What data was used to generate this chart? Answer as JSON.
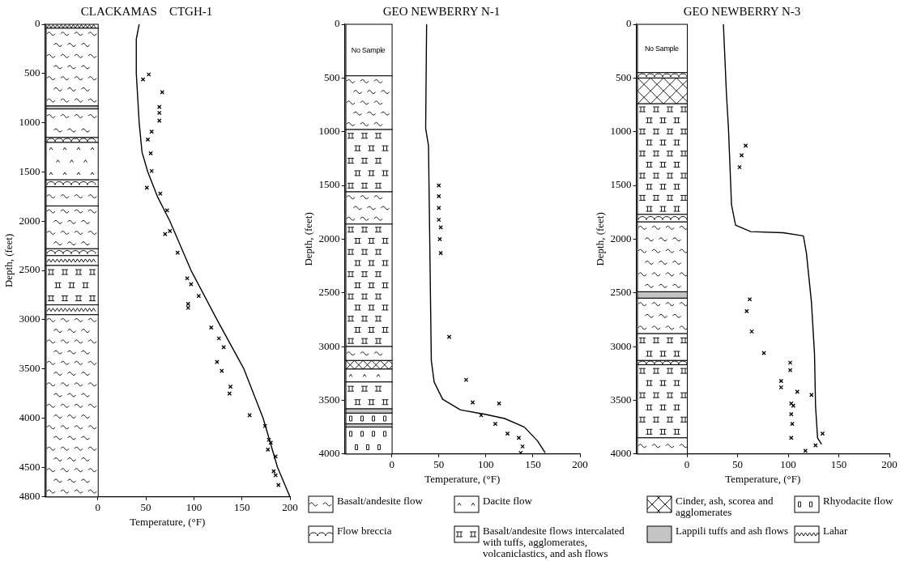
{
  "chart_data": [
    {
      "type": "scatter",
      "title": "CLACKAMAS    CTGH-1",
      "xlabel": "Temperature, (°F)",
      "ylabel": "Depth, (feet)",
      "xlim": [
        -55,
        200
      ],
      "xticks": [
        0,
        50,
        100,
        150,
        200
      ],
      "ylim": [
        4800,
        0
      ],
      "yticks": [
        0,
        500,
        1000,
        1500,
        2000,
        2500,
        3000,
        3500,
        4000,
        4500,
        4800
      ],
      "series": [
        {
          "type": "line",
          "color": "#000000",
          "marker": "none",
          "line_style": "solid",
          "x": [
            43,
            40,
            40,
            43,
            46,
            52,
            62,
            75,
            97,
            124,
            152,
            172,
            187,
            200
          ],
          "values": [
            0,
            150,
            500,
            1000,
            1300,
            1500,
            1750,
            2000,
            2500,
            3000,
            3500,
            4000,
            4500,
            4800
          ]
        },
        {
          "type": "scatter",
          "color": "#000000",
          "marker": "cross",
          "x": [
            53,
            47,
            67,
            64,
            64,
            64,
            56,
            52,
            55,
            56,
            51,
            65,
            72,
            75,
            70,
            83,
            93,
            97,
            105,
            94,
            94,
            118,
            126,
            131,
            124,
            129,
            138,
            137,
            158,
            174,
            178,
            180,
            177,
            185,
            183,
            185,
            188
          ],
          "values": [
            510,
            560,
            690,
            840,
            900,
            980,
            1090,
            1170,
            1310,
            1490,
            1660,
            1720,
            1890,
            2100,
            2130,
            2320,
            2580,
            2640,
            2760,
            2840,
            2880,
            3080,
            3190,
            3280,
            3430,
            3520,
            3680,
            3750,
            3970,
            4080,
            4220,
            4250,
            4320,
            4390,
            4540,
            4580,
            4680
          ]
        }
      ]
    },
    {
      "type": "scatter",
      "title": "GEO NEWBERRY N-1",
      "xlabel": "Temperature, (°F)",
      "ylabel": "Depth, (feet)",
      "xlim": [
        -50,
        200
      ],
      "xticks": [
        0,
        50,
        100,
        150,
        200
      ],
      "ylim": [
        4000,
        0
      ],
      "yticks": [
        0,
        500,
        1000,
        1500,
        2000,
        2500,
        3000,
        3500,
        4000
      ],
      "annotations": [
        "No Sample",
        "Basalt/andesite flow",
        "Dacite flow",
        "Cinder, ash, scorea and agglomerates",
        "Rhyodacite flow",
        "Flow breccia",
        "Basalt/andesite flows intercalated with tuffs, agglomerates, volcaniclastics, and ash flows",
        "Lappili tuffs and ash flows",
        "Lahar"
      ],
      "series": [
        {
          "type": "line",
          "color": "#000000",
          "marker": "none",
          "line_style": "solid",
          "x": [
            37,
            36,
            39,
            42,
            45,
            54,
            73,
            99,
            120,
            141,
            155,
            163
          ],
          "values": [
            0,
            970,
            1130,
            3130,
            3330,
            3490,
            3590,
            3630,
            3670,
            3750,
            3880,
            3990
          ]
        },
        {
          "type": "scatter",
          "color": "#000000",
          "marker": "cross",
          "x": [
            50,
            50,
            50,
            50,
            52,
            51,
            52,
            61,
            79,
            86,
            114,
            95,
            110,
            123,
            135,
            139,
            137
          ],
          "values": [
            1500,
            1600,
            1710,
            1820,
            1890,
            2000,
            2130,
            2910,
            3310,
            3520,
            3530,
            3640,
            3720,
            3810,
            3850,
            3930,
            3990
          ]
        }
      ]
    },
    {
      "type": "scatter",
      "title": "GEO NEWBERRY N-3",
      "xlabel": "Temperature, (°F)",
      "ylabel": "Depth, (feet)",
      "xlim": [
        -50,
        200
      ],
      "xticks": [
        0,
        50,
        100,
        150,
        200
      ],
      "ylim": [
        4000,
        0
      ],
      "yticks": [
        0,
        500,
        1000,
        1500,
        2000,
        2500,
        3000,
        3500,
        4000
      ],
      "annotations": [
        "No Sample"
      ],
      "series": [
        {
          "type": "line",
          "color": "#000000",
          "marker": "none",
          "line_style": "solid",
          "x": [
            36,
            39,
            41,
            44,
            48,
            63,
            95,
            115,
            118,
            123,
            126,
            127,
            129,
            133
          ],
          "values": [
            0,
            650,
            970,
            1680,
            1870,
            1930,
            1940,
            1970,
            2130,
            2590,
            3070,
            3550,
            3850,
            3910
          ]
        },
        {
          "type": "scatter",
          "color": "#000000",
          "marker": "cross",
          "x": [
            58,
            54,
            52,
            62,
            59,
            64,
            76,
            102,
            102,
            93,
            93,
            109,
            123,
            103,
            105,
            103,
            104,
            134,
            103,
            127,
            117
          ],
          "values": [
            1130,
            1220,
            1330,
            2560,
            2670,
            2860,
            3060,
            3150,
            3220,
            3320,
            3380,
            3420,
            3450,
            3530,
            3550,
            3630,
            3720,
            3810,
            3850,
            3920,
            3970
          ]
        }
      ]
    }
  ]
}
